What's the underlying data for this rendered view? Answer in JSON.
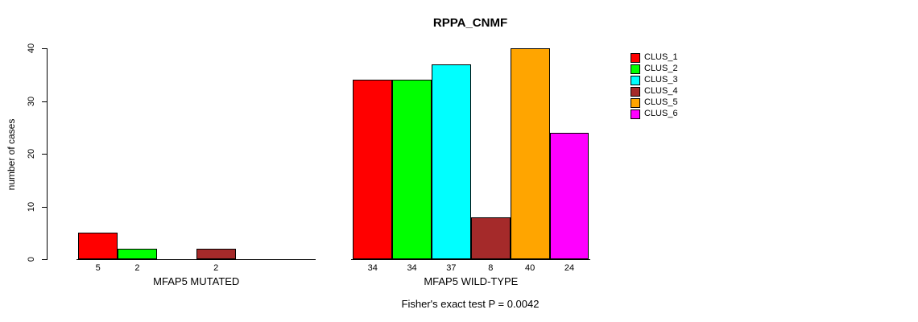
{
  "chart_data": {
    "type": "bar",
    "title": "RPPA_CNMF",
    "ylabel": "number of cases",
    "ylim": [
      0,
      40
    ],
    "yticks": [
      0,
      10,
      20,
      30,
      40
    ],
    "grid": false,
    "legend_position": "right",
    "annotation": "Fisher's exact test P = 0.0042",
    "clusters": [
      {
        "name": "CLUS_1",
        "color": "#FF0000"
      },
      {
        "name": "CLUS_2",
        "color": "#00FF00"
      },
      {
        "name": "CLUS_3",
        "color": "#00FFFF"
      },
      {
        "name": "CLUS_4",
        "color": "#A52A2A"
      },
      {
        "name": "CLUS_5",
        "color": "#FFA500"
      },
      {
        "name": "CLUS_6",
        "color": "#FF00FF"
      }
    ],
    "groups": [
      {
        "label": "MFAP5 MUTATED",
        "values": [
          5,
          2,
          0,
          2,
          0,
          0
        ],
        "bar_labels": [
          "5",
          "2",
          "",
          "2",
          "",
          ""
        ]
      },
      {
        "label": "MFAP5 WILD-TYPE",
        "values": [
          34,
          34,
          37,
          8,
          40,
          24
        ],
        "bar_labels": [
          "34",
          "34",
          "37",
          "8",
          "40",
          "24"
        ]
      }
    ]
  }
}
